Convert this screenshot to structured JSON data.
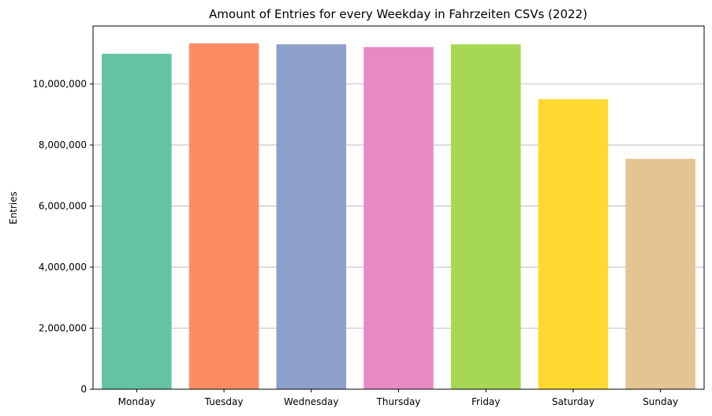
{
  "chart_data": {
    "type": "bar",
    "title": "Amount of Entries for every Weekday in Fahrzeiten CSVs (2022)",
    "xlabel": "",
    "ylabel": "Entries",
    "categories": [
      "Monday",
      "Tuesday",
      "Wednesday",
      "Thursday",
      "Friday",
      "Saturday",
      "Sunday"
    ],
    "values": [
      10990000,
      11330000,
      11300000,
      11210000,
      11300000,
      9500000,
      7550000
    ],
    "colors": [
      "#66c2a5",
      "#fc8d62",
      "#8da0cb",
      "#e78ac3",
      "#a6d854",
      "#ffd92f",
      "#e5c494"
    ],
    "ylim": [
      0,
      11900000
    ],
    "yticks": [
      0,
      2000000,
      4000000,
      6000000,
      8000000,
      10000000
    ],
    "ytick_labels": [
      "0",
      "2,000,000",
      "4,000,000",
      "6,000,000",
      "8,000,000",
      "10,000,000"
    ],
    "grid": "y-axis horizontal lines",
    "legend": "none"
  }
}
